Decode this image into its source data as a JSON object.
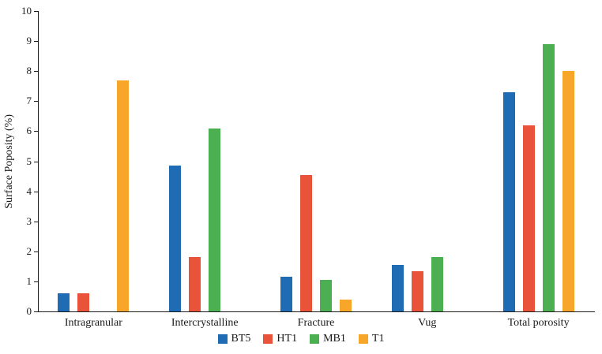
{
  "chart_data": {
    "type": "bar",
    "title": "",
    "ylabel": "Surface Poposity (%)",
    "xlabel": "",
    "ylim": [
      0,
      10
    ],
    "yticks": [
      0,
      1,
      2,
      3,
      4,
      5,
      6,
      7,
      8,
      9,
      10
    ],
    "categories": [
      "Intragranular",
      "Intercrystalline",
      "Fracture",
      "Vug",
      "Total porosity"
    ],
    "series": [
      {
        "name": "BT5",
        "color": "#1f6cb5",
        "values": [
          0.6,
          4.85,
          1.15,
          1.55,
          7.3
        ]
      },
      {
        "name": "HT1",
        "color": "#e8533a",
        "values": [
          0.6,
          1.8,
          4.55,
          1.35,
          6.2
        ]
      },
      {
        "name": "MB1",
        "color": "#4cb052",
        "values": [
          null,
          6.1,
          1.05,
          1.8,
          8.9
        ]
      },
      {
        "name": "T1",
        "color": "#f7a629",
        "values": [
          7.7,
          null,
          0.4,
          null,
          8.0
        ]
      }
    ],
    "grid": false,
    "legend_position": "bottom",
    "legend_labels": [
      "BT5",
      "HT1",
      "MB1",
      "T1"
    ]
  }
}
